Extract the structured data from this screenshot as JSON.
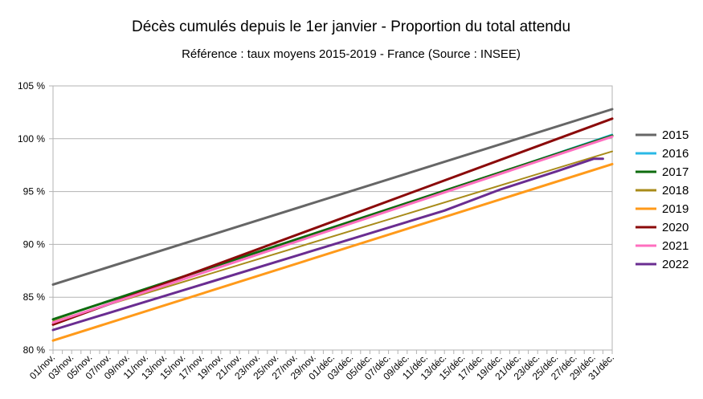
{
  "chart_data": {
    "type": "line",
    "title": "Décès cumulés depuis le 1er janvier - Proportion du total attendu",
    "subtitle": "Référence : taux moyens 2015-2019 - France  (Source : INSEE)",
    "xlabel": "",
    "ylabel": "",
    "x_ticks": [
      "01/nov.",
      "03/nov.",
      "05/nov.",
      "07/nov.",
      "09/nov.",
      "11/nov.",
      "13/nov.",
      "15/nov.",
      "17/nov.",
      "19/nov.",
      "21/nov.",
      "23/nov.",
      "25/nov.",
      "27/nov.",
      "29/nov.",
      "01/déc.",
      "03/déc.",
      "05/déc.",
      "07/déc.",
      "09/déc.",
      "11/déc.",
      "13/déc.",
      "15/déc.",
      "17/déc.",
      "19/déc.",
      "21/déc.",
      "23/déc.",
      "25/déc.",
      "27/déc.",
      "29/déc.",
      "31/déc."
    ],
    "y_ticks": [
      "80 %",
      "85 %",
      "90 %",
      "95 %",
      "100 %",
      "105 %"
    ],
    "ylim": [
      80,
      105
    ],
    "grid": "horizontal",
    "legend_position": "right",
    "series": [
      {
        "name": "2015",
        "color": "#666666",
        "width": 3,
        "points": [
          [
            "01/nov.",
            86.2
          ],
          [
            "31/déc.",
            102.8
          ]
        ]
      },
      {
        "name": "2016",
        "color": "#2ab8e6",
        "width": 2,
        "points": [
          [
            "01/nov.",
            82.5
          ],
          [
            "31/déc.",
            100.4
          ]
        ]
      },
      {
        "name": "2017",
        "color": "#0e6b0e",
        "width": 3,
        "points": [
          [
            "01/nov.",
            82.9
          ],
          [
            "31/déc.",
            100.3
          ]
        ]
      },
      {
        "name": "2018",
        "color": "#a88b1a",
        "width": 2,
        "points": [
          [
            "01/nov.",
            82.7
          ],
          [
            "31/déc.",
            98.8
          ]
        ]
      },
      {
        "name": "2019",
        "color": "#ff9a1a",
        "width": 3,
        "points": [
          [
            "01/nov.",
            80.9
          ],
          [
            "31/déc.",
            97.6
          ]
        ]
      },
      {
        "name": "2020",
        "color": "#8b0a0a",
        "width": 3,
        "points": [
          [
            "01/nov.",
            82.4
          ],
          [
            "31/déc.",
            101.9
          ]
        ]
      },
      {
        "name": "2021",
        "color": "#ff6fbf",
        "width": 3,
        "points": [
          [
            "01/nov.",
            82.6
          ],
          [
            "31/déc.",
            100.2
          ]
        ]
      },
      {
        "name": "2022",
        "color": "#6a2d91",
        "width": 3,
        "points": [
          [
            "01/nov.",
            81.9
          ],
          [
            "13/déc.",
            93.2
          ],
          [
            "19/déc.",
            95.2
          ],
          [
            "25/déc.",
            96.9
          ],
          [
            "27/déc.",
            97.5
          ],
          [
            "29/déc.",
            98.1
          ],
          [
            "30/déc.",
            98.1
          ]
        ]
      }
    ]
  }
}
